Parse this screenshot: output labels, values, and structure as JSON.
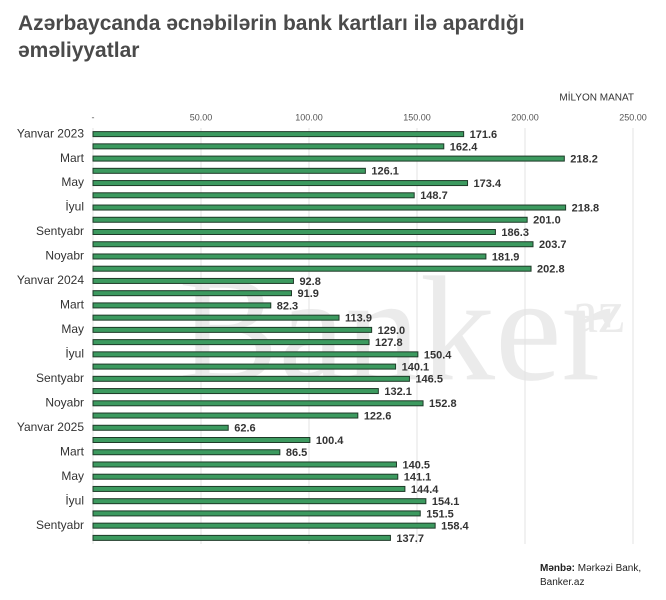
{
  "chart_data": {
    "type": "hbar",
    "title": "Azərbaycanda əcnəbilərin bank kartları ilə apardığı əməliyyatlar",
    "axis_label": "MİLYON MANAT",
    "watermark": "Banker",
    "watermark_sup": "az",
    "source": {
      "label": "Mənbə:",
      "lines": [
        "Mərkəzi Bank,",
        "Banker.az"
      ]
    },
    "categories": [
      "Yanvar 2023",
      null,
      "Mart",
      null,
      "May",
      null,
      "İyul",
      null,
      "Sentyabr",
      null,
      "Noyabr",
      null,
      "Yanvar 2024",
      null,
      "Mart",
      null,
      "May",
      null,
      "İyul",
      null,
      "Sentyabr",
      null,
      "Noyabr",
      null,
      "Yanvar 2025",
      null,
      "Mart",
      null,
      "May",
      null,
      "İyul",
      null,
      "Sentyabr",
      null
    ],
    "values": [
      171.6,
      162.4,
      218.2,
      126.1,
      173.4,
      148.7,
      218.8,
      201.0,
      186.3,
      203.7,
      181.9,
      202.8,
      92.8,
      91.9,
      82.3,
      113.9,
      129.0,
      127.8,
      150.4,
      140.1,
      146.5,
      132.1,
      152.8,
      122.6,
      62.6,
      100.4,
      86.5,
      140.5,
      141.1,
      144.4,
      154.1,
      151.5,
      158.4,
      137.7
    ],
    "value_labels": [
      "171.6",
      "162.4",
      "218.2",
      "126.1",
      "173.4",
      "148.7",
      "218.8",
      "201.0",
      "186.3",
      "203.7",
      "181.9",
      "202.8",
      "92.8",
      "91.9",
      "82.3",
      "113.9",
      "129.0",
      "127.8",
      "150.4",
      "140.1",
      "146.5",
      "132.1",
      "152.8",
      "122.6",
      "62.6",
      "100.4",
      "86.5",
      "140.5",
      "141.1",
      "144.4",
      "154.1",
      "151.5",
      "158.4",
      "137.7"
    ],
    "color": "#3c9a5f",
    "xlim": [
      0,
      250
    ],
    "xticks": [
      {
        "value": 0,
        "label": "-"
      },
      {
        "value": 50,
        "label": "50.00"
      },
      {
        "value": 100,
        "label": "100.00"
      },
      {
        "value": 150,
        "label": "150.00"
      },
      {
        "value": 200,
        "label": "200.00"
      },
      {
        "value": 250,
        "label": "250.00"
      }
    ],
    "grid": true
  }
}
